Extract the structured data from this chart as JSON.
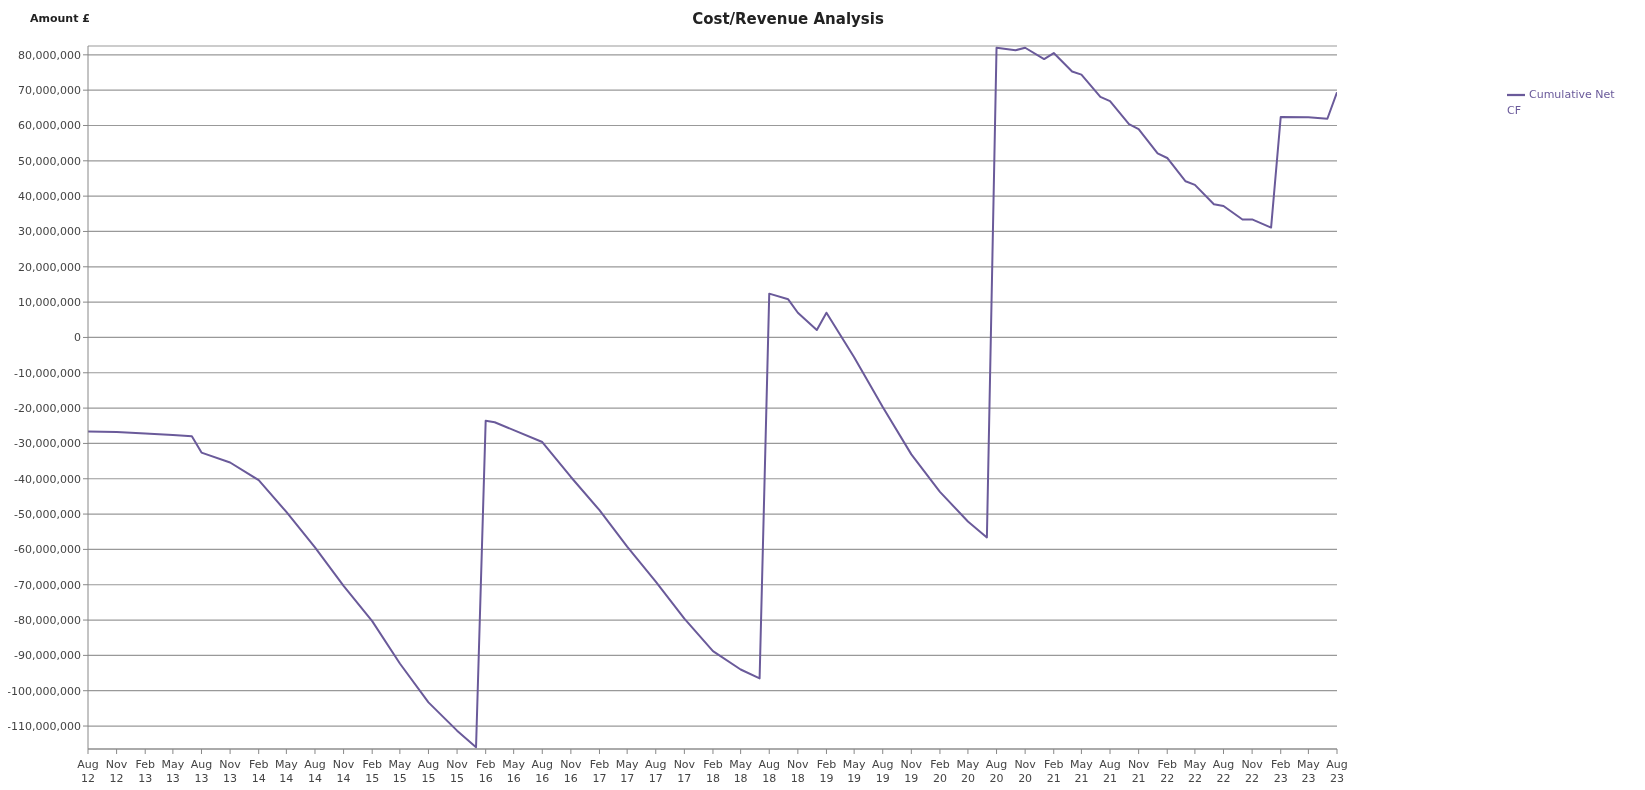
{
  "chart_data": {
    "type": "line",
    "title": "Cost/Revenue Analysis",
    "ylabel": "Amount £",
    "x": [
      "2012-08",
      "2012-11",
      "2013-02",
      "2013-05",
      "2013-07",
      "2013-08",
      "2013-11",
      "2014-02",
      "2014-05",
      "2014-08",
      "2014-11",
      "2015-02",
      "2015-05",
      "2015-08",
      "2015-11",
      "2016-01",
      "2016-02",
      "2016-03",
      "2016-08",
      "2016-11",
      "2017-02",
      "2017-05",
      "2017-08",
      "2017-11",
      "2018-02",
      "2018-05",
      "2018-07",
      "2018-08",
      "2018-10",
      "2018-11",
      "2019-01",
      "2019-02",
      "2019-05",
      "2019-08",
      "2019-11",
      "2020-02",
      "2020-05",
      "2020-07",
      "2020-08",
      "2020-10",
      "2020-11",
      "2021-01",
      "2021-02",
      "2021-04",
      "2021-05",
      "2021-07",
      "2021-08",
      "2021-10",
      "2021-11",
      "2022-01",
      "2022-02",
      "2022-04",
      "2022-05",
      "2022-07",
      "2022-08",
      "2022-10",
      "2022-11",
      "2023-01",
      "2023-02",
      "2023-05",
      "2023-07",
      "2023-08"
    ],
    "series": [
      {
        "name": "Cumulative Net CF",
        "color": "#6a5a9a",
        "values": [
          -26600000,
          -26800000,
          -27200000,
          -27600000,
          -28000000,
          -32600000,
          -35400000,
          -40400000,
          -49400000,
          -59400000,
          -70300000,
          -80300000,
          -92300000,
          -103300000,
          -111300000,
          -116000000,
          -23600000,
          -24000000,
          -29600000,
          -39500000,
          -48900000,
          -59200000,
          -69100000,
          -79600000,
          -88800000,
          -94000000,
          -96500000,
          12400000,
          10800000,
          7000000,
          2100000,
          7000000,
          -5600000,
          -19700000,
          -33100000,
          -43700000,
          -52100000,
          -56600000,
          82000000,
          81300000,
          82000000,
          78800000,
          80500000,
          75300000,
          74400000,
          68100000,
          66900000,
          60400000,
          59000000,
          52100000,
          50800000,
          44200000,
          43200000,
          37700000,
          37200000,
          33400000,
          33400000,
          31100000,
          62400000,
          62300000,
          61900000,
          69400000
        ]
      }
    ],
    "xlim": [
      "2012-08",
      "2023-08"
    ],
    "xticks": [
      {
        "value": "2012-08",
        "label": "Aug 12"
      },
      {
        "value": "2012-11",
        "label": "Nov 12"
      },
      {
        "value": "2013-02",
        "label": "Feb 13"
      },
      {
        "value": "2013-05",
        "label": "May 13"
      },
      {
        "value": "2013-08",
        "label": "Aug 13"
      },
      {
        "value": "2013-11",
        "label": "Nov 13"
      },
      {
        "value": "2014-02",
        "label": "Feb 14"
      },
      {
        "value": "2014-05",
        "label": "May 14"
      },
      {
        "value": "2014-08",
        "label": "Aug 14"
      },
      {
        "value": "2014-11",
        "label": "Nov 14"
      },
      {
        "value": "2015-02",
        "label": "Feb 15"
      },
      {
        "value": "2015-05",
        "label": "May 15"
      },
      {
        "value": "2015-08",
        "label": "Aug 15"
      },
      {
        "value": "2015-11",
        "label": "Nov 15"
      },
      {
        "value": "2016-02",
        "label": "Feb 16"
      },
      {
        "value": "2016-05",
        "label": "May 16"
      },
      {
        "value": "2016-08",
        "label": "Aug 16"
      },
      {
        "value": "2016-11",
        "label": "Nov 16"
      },
      {
        "value": "2017-02",
        "label": "Feb 17"
      },
      {
        "value": "2017-05",
        "label": "May 17"
      },
      {
        "value": "2017-08",
        "label": "Aug 17"
      },
      {
        "value": "2017-11",
        "label": "Nov 17"
      },
      {
        "value": "2018-02",
        "label": "Feb 18"
      },
      {
        "value": "2018-05",
        "label": "May 18"
      },
      {
        "value": "2018-08",
        "label": "Aug 18"
      },
      {
        "value": "2018-11",
        "label": "Nov 18"
      },
      {
        "value": "2019-02",
        "label": "Feb 19"
      },
      {
        "value": "2019-05",
        "label": "May 19"
      },
      {
        "value": "2019-08",
        "label": "Aug 19"
      },
      {
        "value": "2019-11",
        "label": "Nov 19"
      },
      {
        "value": "2020-02",
        "label": "Feb 20"
      },
      {
        "value": "2020-05",
        "label": "May 20"
      },
      {
        "value": "2020-08",
        "label": "Aug 20"
      },
      {
        "value": "2020-11",
        "label": "Nov 20"
      },
      {
        "value": "2021-02",
        "label": "Feb 21"
      },
      {
        "value": "2021-05",
        "label": "May 21"
      },
      {
        "value": "2021-08",
        "label": "Aug 21"
      },
      {
        "value": "2021-11",
        "label": "Nov 21"
      },
      {
        "value": "2022-02",
        "label": "Feb 22"
      },
      {
        "value": "2022-05",
        "label": "May 22"
      },
      {
        "value": "2022-08",
        "label": "Aug 22"
      },
      {
        "value": "2022-11",
        "label": "Nov 22"
      },
      {
        "value": "2023-02",
        "label": "Feb 23"
      },
      {
        "value": "2023-05",
        "label": "May 23"
      },
      {
        "value": "2023-08",
        "label": "Aug 23"
      }
    ],
    "ylim": [
      -116500000,
      82500000
    ],
    "yticks": [
      {
        "value": -110000000,
        "label": "-110,000,000"
      },
      {
        "value": -100000000,
        "label": "-100,000,000"
      },
      {
        "value": -90000000,
        "label": "-90,000,000"
      },
      {
        "value": -80000000,
        "label": "-80,000,000"
      },
      {
        "value": -70000000,
        "label": "-70,000,000"
      },
      {
        "value": -60000000,
        "label": "-60,000,000"
      },
      {
        "value": -50000000,
        "label": "-50,000,000"
      },
      {
        "value": -40000000,
        "label": "-40,000,000"
      },
      {
        "value": -30000000,
        "label": "-30,000,000"
      },
      {
        "value": -20000000,
        "label": "-20,000,000"
      },
      {
        "value": -10000000,
        "label": "-10,000,000"
      },
      0,
      {
        "value": 10000000,
        "label": "10,000,000"
      },
      {
        "value": 20000000,
        "label": "20,000,000"
      },
      {
        "value": 30000000,
        "label": "30,000,000"
      },
      {
        "value": 40000000,
        "label": "40,000,000"
      },
      {
        "value": 50000000,
        "label": "50,000,000"
      },
      {
        "value": 60000000,
        "label": "60,000,000"
      },
      {
        "value": 70000000,
        "label": "70,000,000"
      },
      {
        "value": 80000000,
        "label": "80,000,000"
      }
    ],
    "grid": "y",
    "legend": "top right"
  }
}
